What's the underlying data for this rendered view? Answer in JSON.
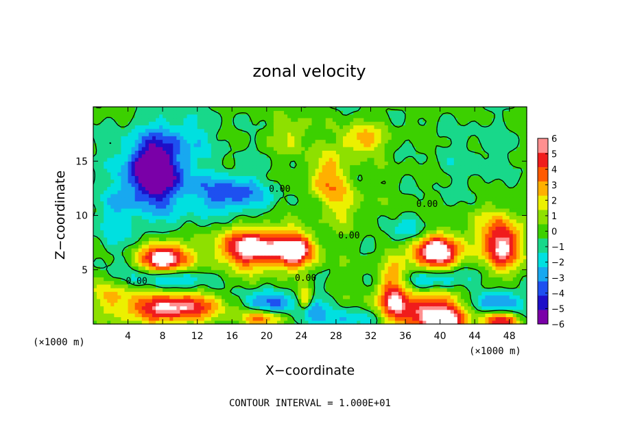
{
  "chart_data": {
    "type": "heatmap",
    "title": "zonal velocity",
    "xlabel": "X−coordinate",
    "ylabel": "Z−coordinate",
    "x_unit": "(×1000 m)",
    "y_unit": "(×1000 m)",
    "xlim": [
      0,
      50
    ],
    "ylim": [
      0,
      20
    ],
    "x_ticks": [
      4,
      8,
      12,
      16,
      20,
      24,
      28,
      32,
      36,
      40,
      44,
      48
    ],
    "y_ticks": [
      5,
      10,
      15
    ],
    "colorbar_ticks": [
      6,
      5,
      4,
      3,
      2,
      1,
      0,
      -1,
      -2,
      -3,
      -4,
      -5,
      -6
    ],
    "colorbar_range": [
      -6,
      6
    ],
    "colormap": [
      "#7a00a8",
      "#1e0fc8",
      "#1e50f0",
      "#18a8f0",
      "#00e0e0",
      "#18d88a",
      "#3cd000",
      "#8ee000",
      "#ecf000",
      "#ffb000",
      "#ff5a00",
      "#f01c1c",
      "#ff9090"
    ],
    "zero_contour_label": "0.00",
    "contour_label_positions": [
      [
        5,
        4
      ],
      [
        24.5,
        4.3
      ],
      [
        38.5,
        11.1
      ],
      [
        21.5,
        12.5
      ],
      [
        29.5,
        8.2
      ]
    ],
    "features": [
      {
        "x": 7,
        "z": 14.2,
        "value": -6,
        "sx": 2.8,
        "sz": 2.6
      },
      {
        "x": 7.5,
        "z": 13.3,
        "value": -2.5,
        "sx": 5.2,
        "sz": 4.3
      },
      {
        "x": 16,
        "z": 12,
        "value": -4,
        "sx": 4,
        "sz": 1.8
      },
      {
        "x": 10,
        "z": 17.5,
        "value": -1.5,
        "sx": 4.5,
        "sz": 2
      },
      {
        "x": 2.5,
        "z": 9.5,
        "value": -1.5,
        "sx": 2.5,
        "sz": 3
      },
      {
        "x": 18.5,
        "z": 7,
        "value": 7.5,
        "sx": 4.2,
        "sz": 1.8
      },
      {
        "x": 23.5,
        "z": 6.8,
        "value": 6,
        "sx": 2.2,
        "sz": 1.6
      },
      {
        "x": 8.2,
        "z": 6,
        "value": 8,
        "sx": 2.8,
        "sz": 1.5
      },
      {
        "x": 8.5,
        "z": 4.3,
        "value": -3.5,
        "sx": 4.5,
        "sz": 1
      },
      {
        "x": 39.5,
        "z": 6.6,
        "value": 8,
        "sx": 2.8,
        "sz": 1.6
      },
      {
        "x": 39.5,
        "z": 4.2,
        "value": -3.5,
        "sx": 4.2,
        "sz": 1
      },
      {
        "x": 36,
        "z": 8.5,
        "value": -2.5,
        "sx": 2.5,
        "sz": 1
      },
      {
        "x": 47.5,
        "z": 7,
        "value": 5.5,
        "sx": 2,
        "sz": 2.2
      },
      {
        "x": 46,
        "z": 8.5,
        "value": 2.5,
        "sx": 3,
        "sz": 2.5
      },
      {
        "x": 9,
        "z": 1.5,
        "value": 7,
        "sx": 5.5,
        "sz": 1.3
      },
      {
        "x": 2,
        "z": 2.8,
        "value": 2.5,
        "sx": 2.5,
        "sz": 1.2
      },
      {
        "x": 20,
        "z": 1.8,
        "value": -4,
        "sx": 3,
        "sz": 1.2
      },
      {
        "x": 19.5,
        "z": 0.6,
        "value": 5,
        "sx": 2.5,
        "sz": 0.8
      },
      {
        "x": 24.5,
        "z": 2.2,
        "value": 6,
        "sx": 0.8,
        "sz": 1
      },
      {
        "x": 25,
        "z": 1.5,
        "value": -3.5,
        "sx": 1.5,
        "sz": 1.5
      },
      {
        "x": 34.5,
        "z": 3,
        "value": 4.5,
        "sx": 1.6,
        "sz": 3
      },
      {
        "x": 38.5,
        "z": 1.5,
        "value": 5,
        "sx": 5,
        "sz": 1.8
      },
      {
        "x": 40,
        "z": 0.2,
        "value": 7,
        "sx": 2.5,
        "sz": 1
      },
      {
        "x": 46.5,
        "z": 2,
        "value": -4,
        "sx": 3,
        "sz": 1.2
      },
      {
        "x": 47,
        "z": 0.4,
        "value": 6,
        "sx": 2,
        "sz": 0.8
      },
      {
        "x": 29.5,
        "z": 0.5,
        "value": -2.5,
        "sx": 4,
        "sz": 0.9
      },
      {
        "x": 31,
        "z": 17,
        "value": 3.5,
        "sx": 2.5,
        "sz": 1.4
      },
      {
        "x": 27,
        "z": 13.5,
        "value": 3.5,
        "sx": 2.2,
        "sz": 2.2
      },
      {
        "x": 29,
        "z": 11,
        "value": 2,
        "sx": 2,
        "sz": 2
      },
      {
        "x": 23,
        "z": 17.5,
        "value": 2,
        "sx": 2,
        "sz": 1.6
      },
      {
        "x": 44,
        "z": 15,
        "value": -0.8,
        "sx": 5,
        "sz": 4
      }
    ]
  },
  "contour_note": "CONTOUR INTERVAL = 1.000E+01"
}
